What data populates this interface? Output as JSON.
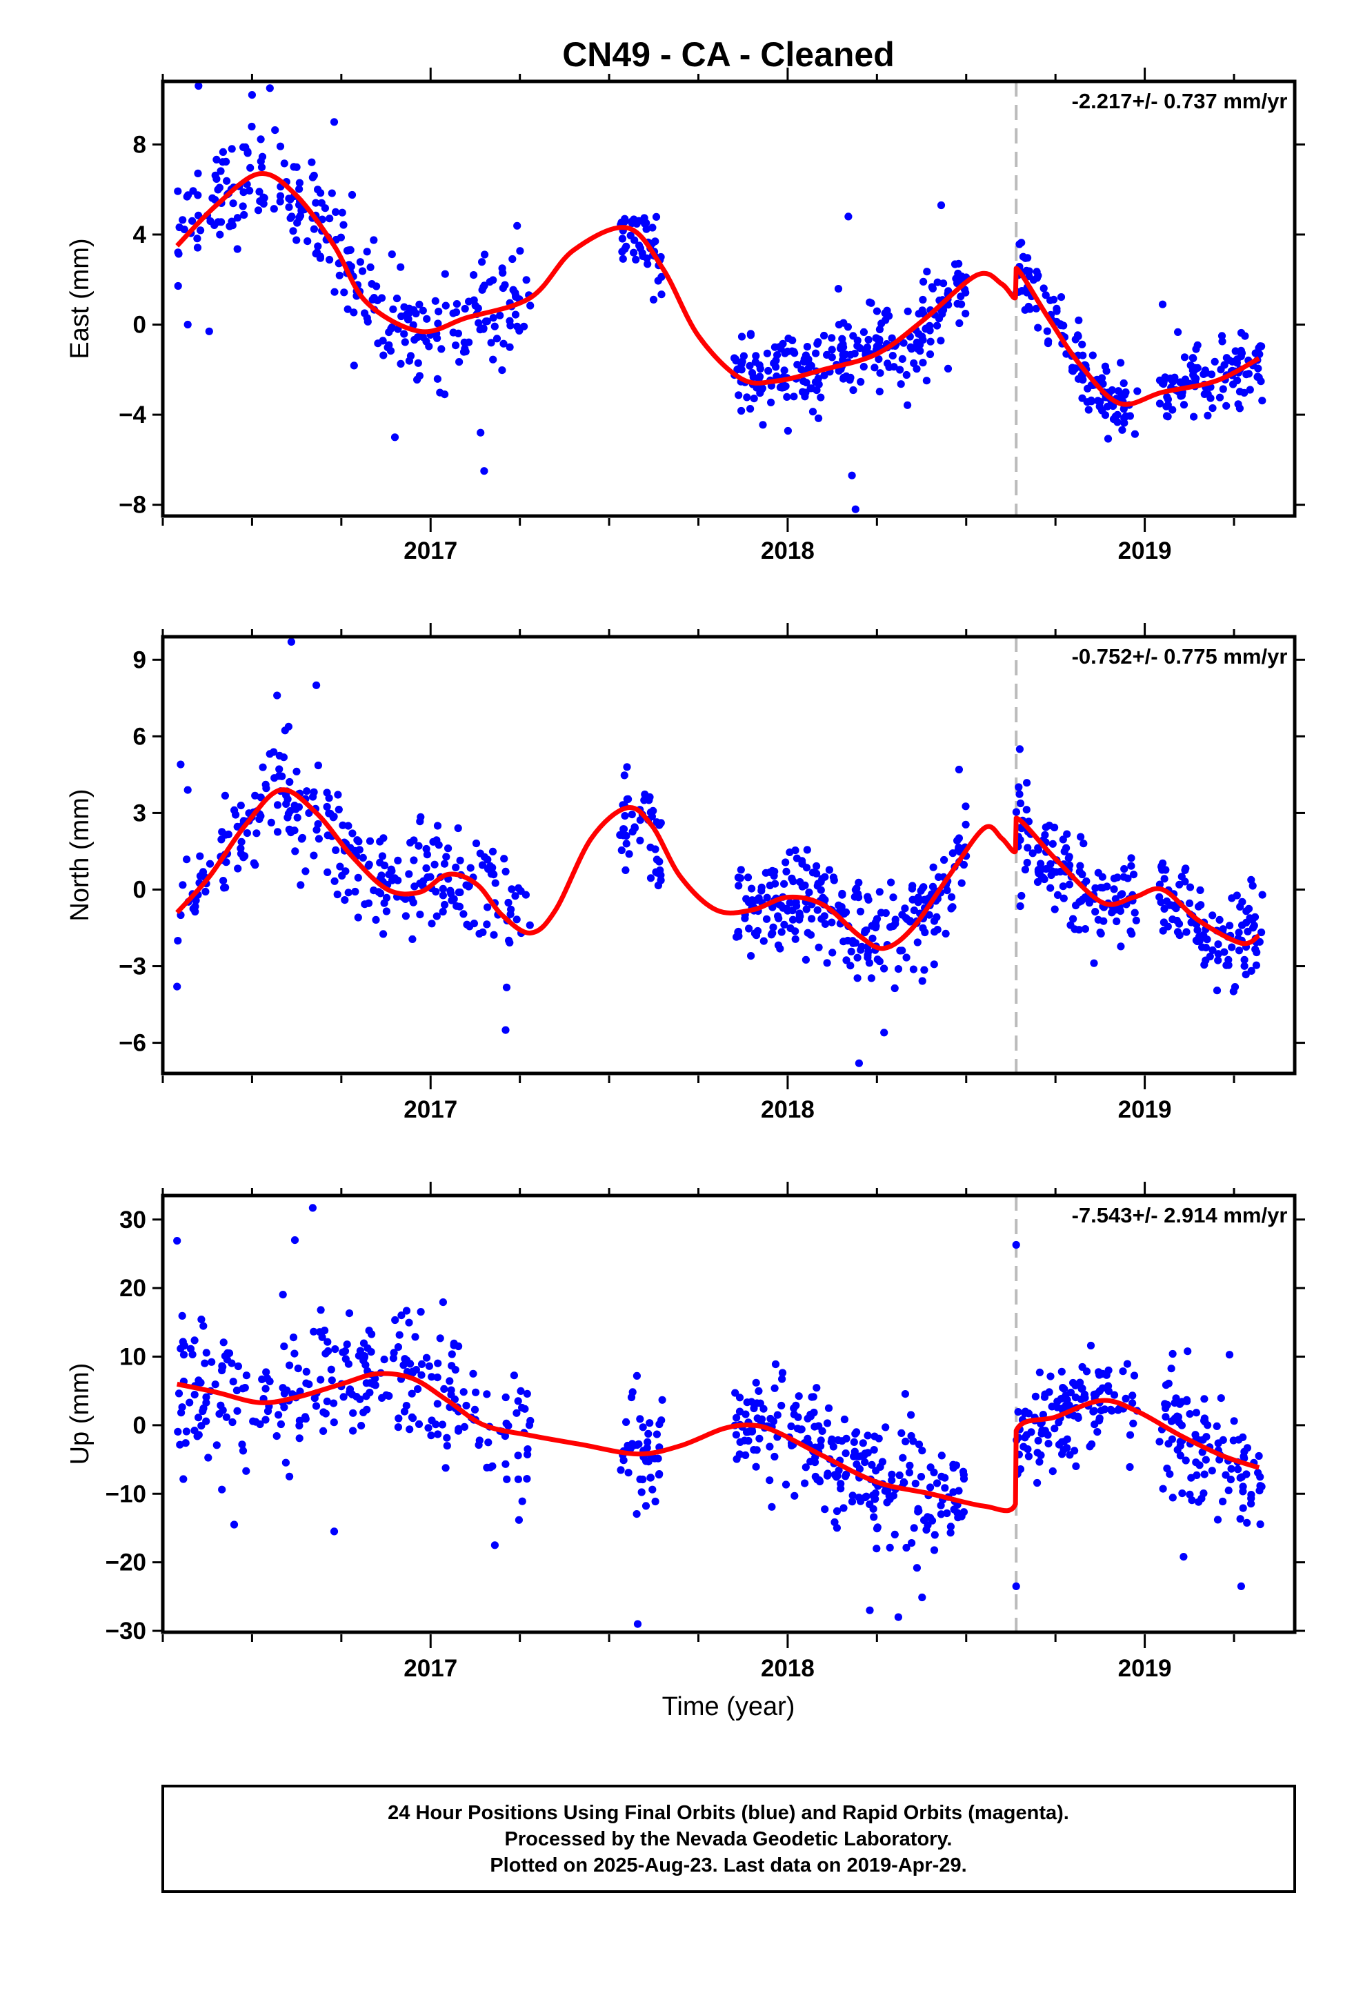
{
  "page_title": "CN49  - CA - Cleaned",
  "colors": {
    "points": "#0000ff",
    "fit": "#ff0000",
    "event_line": "#bbbbbb",
    "frame": "#000000"
  },
  "footer": {
    "line1": "24 Hour Positions Using Final Orbits (blue) and Rapid Orbits (magenta).",
    "line2": "Processed by the Nevada Geodetic Laboratory.",
    "line3": "Plotted on 2025-Aug-23. Last data on 2019-Apr-29."
  },
  "chart_data": [
    {
      "type": "scatter",
      "ylabel": "East (mm)",
      "xlabel": "",
      "rate_label": "-2.217+/- 0.737 mm/yr",
      "xlim": [
        2016.25,
        2019.42
      ],
      "ylim": [
        -8.5,
        10.8
      ],
      "x_ticks": [
        2017,
        2018,
        2019
      ],
      "y_ticks": [
        -8,
        -4,
        0,
        4,
        8
      ],
      "event_x": 2018.64,
      "grid": false,
      "scatter_groups": [
        {
          "x_start": 2016.29,
          "x_end": 2016.78,
          "count": 140,
          "center": [
            [
              2016.29,
              3.5
            ],
            [
              2016.42,
              5.8
            ],
            [
              2016.55,
              6.7
            ],
            [
              2016.65,
              5.5
            ],
            [
              2016.78,
              3.0
            ]
          ],
          "spread": 1.5
        },
        {
          "x_start": 2016.78,
          "x_end": 2017.28,
          "count": 140,
          "center": [
            [
              2016.78,
              2.5
            ],
            [
              2016.88,
              0.0
            ],
            [
              2016.97,
              -0.4
            ],
            [
              2017.1,
              0.3
            ],
            [
              2017.28,
              1.1
            ]
          ],
          "spread": 1.6
        },
        {
          "x_start": 2017.53,
          "x_end": 2017.65,
          "count": 45,
          "center": [
            [
              2017.53,
              4.2
            ],
            [
              2017.6,
              3.6
            ],
            [
              2017.65,
              2.2
            ]
          ],
          "spread": 1.0
        },
        {
          "x_start": 2017.85,
          "x_end": 2018.1,
          "count": 100,
          "center": [
            [
              2017.85,
              -2.3
            ],
            [
              2017.95,
              -2.5
            ],
            [
              2018.1,
              -2.0
            ]
          ],
          "spread": 1.1
        },
        {
          "x_start": 2018.1,
          "x_end": 2018.5,
          "count": 150,
          "center": [
            [
              2018.1,
              -1.8
            ],
            [
              2018.2,
              -1.4
            ],
            [
              2018.35,
              -0.5
            ],
            [
              2018.5,
              1.5
            ]
          ],
          "spread": 1.4
        },
        {
          "x_start": 2018.64,
          "x_end": 2018.98,
          "count": 130,
          "center": [
            [
              2018.64,
              2.8
            ],
            [
              2018.72,
              0.5
            ],
            [
              2018.82,
              -1.8
            ],
            [
              2018.9,
              -3.3
            ],
            [
              2018.98,
              -3.8
            ]
          ],
          "spread": 1.0
        },
        {
          "x_start": 2019.04,
          "x_end": 2019.33,
          "count": 110,
          "center": [
            [
              2019.04,
              -2.8
            ],
            [
              2019.2,
              -2.5
            ],
            [
              2019.33,
              -1.8
            ]
          ],
          "spread": 1.0
        }
      ],
      "outliers": [
        [
          2016.35,
          10.6
        ],
        [
          2016.5,
          10.2
        ],
        [
          2016.55,
          10.5
        ],
        [
          2016.73,
          9.0
        ],
        [
          2017.15,
          -6.5
        ],
        [
          2017.14,
          -4.8
        ],
        [
          2016.9,
          -5.0
        ],
        [
          2018.18,
          -6.7
        ],
        [
          2018.19,
          -8.2
        ],
        [
          2018.17,
          4.8
        ],
        [
          2018.43,
          5.3
        ],
        [
          2019.05,
          0.9
        ],
        [
          2016.32,
          0.0
        ],
        [
          2016.38,
          -0.3
        ]
      ],
      "fit_line": [
        [
          2016.29,
          3.5
        ],
        [
          2016.4,
          5.3
        ],
        [
          2016.52,
          6.7
        ],
        [
          2016.62,
          5.8
        ],
        [
          2016.73,
          3.5
        ],
        [
          2016.82,
          1.0
        ],
        [
          2016.97,
          -0.3
        ],
        [
          2017.1,
          0.3
        ],
        [
          2017.28,
          1.2
        ],
        [
          2017.4,
          3.3
        ],
        [
          2017.55,
          4.3
        ],
        [
          2017.65,
          2.5
        ],
        [
          2017.75,
          -0.5
        ],
        [
          2017.87,
          -2.4
        ],
        [
          2017.97,
          -2.5
        ],
        [
          2018.1,
          -2.0
        ],
        [
          2018.25,
          -1.3
        ],
        [
          2018.38,
          0.2
        ],
        [
          2018.53,
          2.2
        ],
        [
          2018.6,
          1.8
        ],
        [
          2018.638,
          1.2
        ],
        [
          2018.64,
          2.5
        ],
        [
          2018.73,
          0.3
        ],
        [
          2018.82,
          -1.8
        ],
        [
          2018.93,
          -3.5
        ],
        [
          2019.05,
          -3.0
        ],
        [
          2019.2,
          -2.5
        ],
        [
          2019.32,
          -1.5
        ]
      ]
    },
    {
      "type": "scatter",
      "ylabel": "North (mm)",
      "xlabel": "",
      "rate_label": "-0.752+/- 0.775 mm/yr",
      "xlim": [
        2016.25,
        2019.42
      ],
      "ylim": [
        -7.2,
        9.9
      ],
      "x_ticks": [
        2017,
        2018,
        2019
      ],
      "y_ticks": [
        -6,
        -3,
        0,
        3,
        6,
        9
      ],
      "event_x": 2018.64,
      "grid": false,
      "scatter_groups": [
        {
          "x_start": 2016.29,
          "x_end": 2016.78,
          "count": 140,
          "center": [
            [
              2016.29,
              -1.0
            ],
            [
              2016.42,
              1.5
            ],
            [
              2016.58,
              3.9
            ],
            [
              2016.7,
              2.8
            ],
            [
              2016.78,
              1.5
            ]
          ],
          "spread": 1.5
        },
        {
          "x_start": 2016.78,
          "x_end": 2017.28,
          "count": 140,
          "center": [
            [
              2016.78,
              1.2
            ],
            [
              2016.88,
              -0.2
            ],
            [
              2017.0,
              0.5
            ],
            [
              2017.12,
              0.1
            ],
            [
              2017.28,
              -1.6
            ]
          ],
          "spread": 1.5
        },
        {
          "x_start": 2017.53,
          "x_end": 2017.65,
          "count": 45,
          "center": [
            [
              2017.53,
              2.5
            ],
            [
              2017.6,
              2.8
            ],
            [
              2017.65,
              1.2
            ]
          ],
          "spread": 1.2
        },
        {
          "x_start": 2017.85,
          "x_end": 2018.1,
          "count": 110,
          "center": [
            [
              2017.85,
              -0.8
            ],
            [
              2017.95,
              -0.8
            ],
            [
              2018.1,
              -0.2
            ]
          ],
          "spread": 1.2
        },
        {
          "x_start": 2018.1,
          "x_end": 2018.5,
          "count": 150,
          "center": [
            [
              2018.1,
              -0.5
            ],
            [
              2018.25,
              -2.3
            ],
            [
              2018.4,
              -0.8
            ],
            [
              2018.5,
              1.2
            ]
          ],
          "spread": 1.3
        },
        {
          "x_start": 2018.64,
          "x_end": 2018.98,
          "count": 130,
          "center": [
            [
              2018.64,
              2.5
            ],
            [
              2018.75,
              1.0
            ],
            [
              2018.88,
              -0.5
            ],
            [
              2018.98,
              -0.2
            ]
          ],
          "spread": 1.2
        },
        {
          "x_start": 2019.04,
          "x_end": 2019.33,
          "count": 110,
          "center": [
            [
              2019.04,
              0.0
            ],
            [
              2019.18,
              -1.8
            ],
            [
              2019.33,
              -2.0
            ]
          ],
          "spread": 1.2
        }
      ],
      "outliers": [
        [
          2016.61,
          9.7
        ],
        [
          2016.68,
          8.0
        ],
        [
          2016.57,
          7.6
        ],
        [
          2018.65,
          5.5
        ],
        [
          2018.48,
          4.7
        ],
        [
          2018.2,
          -6.8
        ],
        [
          2017.21,
          -5.5
        ],
        [
          2018.27,
          -5.6
        ],
        [
          2016.29,
          -3.8
        ],
        [
          2016.3,
          4.9
        ],
        [
          2016.32,
          3.9
        ],
        [
          2017.55,
          4.8
        ]
      ],
      "fit_line": [
        [
          2016.29,
          -0.9
        ],
        [
          2016.38,
          0.5
        ],
        [
          2016.48,
          2.5
        ],
        [
          2016.58,
          3.9
        ],
        [
          2016.68,
          3.0
        ],
        [
          2016.78,
          1.3
        ],
        [
          2016.88,
          0.0
        ],
        [
          2016.97,
          -0.1
        ],
        [
          2017.05,
          0.6
        ],
        [
          2017.13,
          0.2
        ],
        [
          2017.2,
          -1.0
        ],
        [
          2017.28,
          -1.7
        ],
        [
          2017.35,
          -0.8
        ],
        [
          2017.45,
          2.0
        ],
        [
          2017.55,
          3.2
        ],
        [
          2017.62,
          2.5
        ],
        [
          2017.7,
          0.5
        ],
        [
          2017.8,
          -0.8
        ],
        [
          2017.9,
          -0.8
        ],
        [
          2018.0,
          -0.3
        ],
        [
          2018.1,
          -0.6
        ],
        [
          2018.2,
          -1.8
        ],
        [
          2018.27,
          -2.3
        ],
        [
          2018.35,
          -1.5
        ],
        [
          2018.45,
          0.5
        ],
        [
          2018.55,
          2.4
        ],
        [
          2018.6,
          2.0
        ],
        [
          2018.638,
          1.5
        ],
        [
          2018.64,
          2.8
        ],
        [
          2018.75,
          1.2
        ],
        [
          2018.88,
          -0.5
        ],
        [
          2018.97,
          -0.3
        ],
        [
          2019.05,
          0.0
        ],
        [
          2019.15,
          -1.2
        ],
        [
          2019.27,
          -2.1
        ],
        [
          2019.32,
          -1.8
        ]
      ]
    },
    {
      "type": "scatter",
      "ylabel": "Up (mm)",
      "xlabel": "Time (year)",
      "rate_label": "-7.543+/- 2.914 mm/yr",
      "xlim": [
        2016.25,
        2019.42
      ],
      "ylim": [
        -30.2,
        33.5
      ],
      "x_ticks": [
        2017,
        2018,
        2019
      ],
      "y_ticks": [
        -30,
        -20,
        -10,
        0,
        10,
        20,
        30
      ],
      "event_x": 2018.64,
      "grid": false,
      "scatter_groups": [
        {
          "x_start": 2016.29,
          "x_end": 2016.78,
          "count": 140,
          "center": [
            [
              2016.29,
              6.0
            ],
            [
              2016.5,
              3.5
            ],
            [
              2016.65,
              4.0
            ],
            [
              2016.78,
              5.5
            ]
          ],
          "spread": 7.5
        },
        {
          "x_start": 2016.78,
          "x_end": 2017.28,
          "count": 140,
          "center": [
            [
              2016.78,
              5.5
            ],
            [
              2016.92,
              7.5
            ],
            [
              2017.05,
              4.5
            ],
            [
              2017.18,
              -1.0
            ],
            [
              2017.28,
              -2.0
            ]
          ],
          "spread": 7.0
        },
        {
          "x_start": 2017.53,
          "x_end": 2017.65,
          "count": 45,
          "center": [
            [
              2017.53,
              -4.0
            ],
            [
              2017.6,
              -3.8
            ],
            [
              2017.65,
              -3.0
            ]
          ],
          "spread": 7.0
        },
        {
          "x_start": 2017.85,
          "x_end": 2018.1,
          "count": 100,
          "center": [
            [
              2017.85,
              -0.5
            ],
            [
              2017.95,
              -0.5
            ],
            [
              2018.1,
              -4.5
            ]
          ],
          "spread": 5.0
        },
        {
          "x_start": 2018.1,
          "x_end": 2018.5,
          "count": 150,
          "center": [
            [
              2018.1,
              -5.0
            ],
            [
              2018.25,
              -8.5
            ],
            [
              2018.4,
              -10.5
            ],
            [
              2018.5,
              -11.5
            ]
          ],
          "spread": 6.0
        },
        {
          "x_start": 2018.64,
          "x_end": 2018.98,
          "count": 130,
          "center": [
            [
              2018.64,
              -0.8
            ],
            [
              2018.8,
              2.5
            ],
            [
              2018.9,
              3.8
            ],
            [
              2018.98,
              2.5
            ]
          ],
          "spread": 4.5
        },
        {
          "x_start": 2019.04,
          "x_end": 2019.33,
          "count": 110,
          "center": [
            [
              2019.04,
              0.5
            ],
            [
              2019.2,
              -4.0
            ],
            [
              2019.33,
              -6.0
            ]
          ],
          "spread": 7.0
        }
      ],
      "outliers": [
        [
          2016.67,
          31.7
        ],
        [
          2016.29,
          26.9
        ],
        [
          2016.62,
          27.0
        ],
        [
          2018.64,
          26.3
        ],
        [
          2017.58,
          -29.0
        ],
        [
          2018.23,
          -27.0
        ],
        [
          2018.31,
          -28.0
        ],
        [
          2016.73,
          -15.5
        ],
        [
          2016.45,
          -14.5
        ],
        [
          2017.18,
          -17.5
        ],
        [
          2018.64,
          -23.5
        ],
        [
          2019.27,
          -23.5
        ]
      ],
      "fit_line": [
        [
          2016.29,
          6.0
        ],
        [
          2016.4,
          4.8
        ],
        [
          2016.52,
          3.3
        ],
        [
          2016.62,
          4.0
        ],
        [
          2016.75,
          6.0
        ],
        [
          2016.85,
          7.5
        ],
        [
          2016.95,
          6.8
        ],
        [
          2017.05,
          3.5
        ],
        [
          2017.15,
          0.0
        ],
        [
          2017.28,
          -1.5
        ],
        [
          2017.42,
          -2.8
        ],
        [
          2017.58,
          -4.2
        ],
        [
          2017.7,
          -3.0
        ],
        [
          2017.82,
          -0.5
        ],
        [
          2017.9,
          0.0
        ],
        [
          2017.97,
          -1.0
        ],
        [
          2018.1,
          -4.5
        ],
        [
          2018.25,
          -8.3
        ],
        [
          2018.4,
          -10.0
        ],
        [
          2018.55,
          -11.8
        ],
        [
          2018.638,
          -11.5
        ],
        [
          2018.64,
          -0.8
        ],
        [
          2018.75,
          1.2
        ],
        [
          2018.88,
          3.6
        ],
        [
          2018.98,
          2.0
        ],
        [
          2019.1,
          -1.5
        ],
        [
          2019.22,
          -4.5
        ],
        [
          2019.32,
          -6.2
        ]
      ]
    }
  ]
}
